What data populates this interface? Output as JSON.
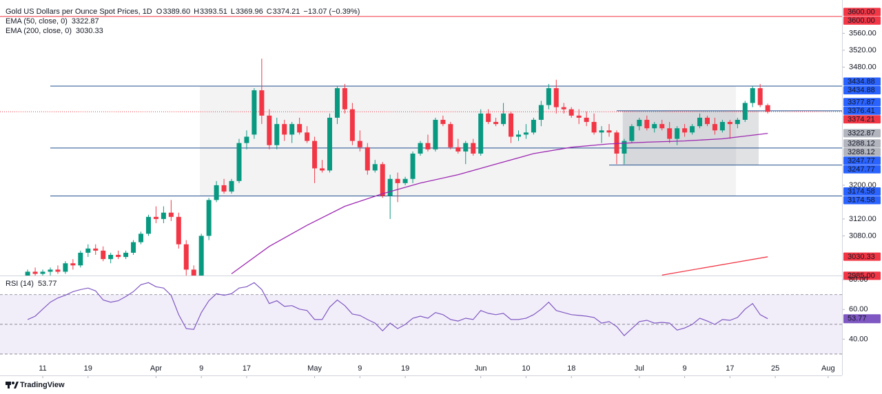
{
  "chart_data": [
    {
      "type": "candlestick",
      "title": "Gold US Dollars per Ounce Spot Prices, 1D",
      "ohlc_legend": [
        {
          "key": "O",
          "value": "3389.60"
        },
        {
          "key": "H",
          "value": "3393.51"
        },
        {
          "key": "L",
          "value": "3369.96"
        },
        {
          "key": "C",
          "value": "3374.21"
        }
      ],
      "change": "−13.07 (−0.39%)",
      "up_color": "#089981",
      "down_color": "#f23645",
      "x": [
        -2,
        -1,
        0,
        1,
        2,
        3,
        4,
        5,
        6,
        7,
        8,
        9,
        10,
        11,
        12,
        13,
        14,
        15,
        16,
        17,
        18,
        19,
        20,
        21,
        22,
        23,
        24,
        25,
        26,
        27,
        28,
        29,
        30,
        31,
        32,
        33,
        34,
        35,
        36,
        37,
        38,
        39,
        40,
        41,
        42,
        43,
        44,
        45,
        46,
        47,
        48,
        49,
        50,
        51,
        52,
        53,
        54,
        55,
        56,
        57,
        58,
        59,
        60,
        61,
        62,
        63,
        64,
        65,
        66,
        67,
        68,
        69,
        70,
        71,
        72,
        73,
        74,
        75,
        76,
        77,
        78,
        79,
        80,
        81,
        82,
        83,
        84,
        85,
        86,
        87,
        88,
        89,
        90,
        91,
        92,
        93,
        94,
        95,
        96
      ],
      "open": [
        2985,
        2995,
        2990,
        2995,
        3000,
        2995,
        3015,
        3010,
        3040,
        3050,
        3045,
        3025,
        3035,
        3030,
        3040,
        3065,
        3085,
        3125,
        3120,
        3135,
        3125,
        3060,
        3000,
        2975,
        3080,
        3165,
        3200,
        3185,
        3210,
        3300,
        3320,
        3425,
        3365,
        3295,
        3345,
        3320,
        3345,
        3325,
        3305,
        3240,
        3235,
        3360,
        3430,
        3380,
        3305,
        3290,
        3235,
        3250,
        3175,
        3215,
        3205,
        3215,
        3275,
        3300,
        3285,
        3355,
        3345,
        3290,
        3280,
        3300,
        3275,
        3370,
        3350,
        3345,
        3370,
        3315,
        3320,
        3325,
        3355,
        3390,
        3430,
        3385,
        3380,
        3365,
        3360,
        3350,
        3325,
        3330,
        3325,
        3275,
        3305,
        3340,
        3355,
        3335,
        3345,
        3335,
        3310,
        3335,
        3325,
        3340,
        3360,
        3345,
        3330,
        3350,
        3345,
        3355,
        3395,
        3430,
        3389.6
      ],
      "high": [
        3000,
        3005,
        3000,
        3005,
        3010,
        3020,
        3025,
        3045,
        3060,
        3060,
        3055,
        3040,
        3045,
        3045,
        3070,
        3090,
        3130,
        3150,
        3150,
        3165,
        3135,
        3070,
        3010,
        3085,
        3170,
        3210,
        3215,
        3215,
        3310,
        3330,
        3430,
        3500,
        3380,
        3360,
        3355,
        3350,
        3360,
        3340,
        3315,
        3260,
        3370,
        3435,
        3440,
        3395,
        3330,
        3300,
        3260,
        3255,
        3225,
        3230,
        3220,
        3280,
        3305,
        3320,
        3360,
        3365,
        3350,
        3310,
        3305,
        3310,
        3380,
        3380,
        3360,
        3395,
        3375,
        3330,
        3345,
        3360,
        3400,
        3440,
        3450,
        3395,
        3385,
        3380,
        3375,
        3370,
        3340,
        3345,
        3330,
        3310,
        3345,
        3360,
        3365,
        3350,
        3355,
        3350,
        3340,
        3345,
        3345,
        3370,
        3365,
        3360,
        3355,
        3355,
        3360,
        3400,
        3435,
        3440,
        3393.51
      ],
      "low": [
        2975,
        2985,
        2980,
        2985,
        2990,
        2990,
        3000,
        3005,
        3030,
        3035,
        3020,
        3015,
        3025,
        3025,
        3035,
        3060,
        3080,
        3110,
        3110,
        3115,
        3050,
        2985,
        2960,
        2960,
        3070,
        3160,
        3180,
        3180,
        3205,
        3285,
        3310,
        3345,
        3285,
        3285,
        3305,
        3300,
        3320,
        3300,
        3205,
        3230,
        3230,
        3345,
        3370,
        3295,
        3280,
        3225,
        3230,
        3170,
        3120,
        3160,
        3200,
        3205,
        3270,
        3280,
        3280,
        3340,
        3285,
        3275,
        3250,
        3270,
        3270,
        3345,
        3340,
        3340,
        3300,
        3305,
        3310,
        3320,
        3340,
        3380,
        3370,
        3370,
        3360,
        3345,
        3340,
        3320,
        3300,
        3315,
        3250,
        3250,
        3300,
        3330,
        3330,
        3325,
        3330,
        3300,
        3295,
        3315,
        3320,
        3335,
        3340,
        3320,
        3325,
        3310,
        3335,
        3350,
        3385,
        3385,
        3369.96
      ],
      "close": [
        2995,
        2990,
        2995,
        3000,
        2995,
        3015,
        3010,
        3040,
        3050,
        3045,
        3025,
        3035,
        3030,
        3040,
        3065,
        3085,
        3125,
        3120,
        3135,
        3125,
        3060,
        3000,
        2975,
        3080,
        3165,
        3200,
        3185,
        3210,
        3300,
        3315,
        3425,
        3365,
        3295,
        3345,
        3320,
        3345,
        3325,
        3305,
        3240,
        3235,
        3360,
        3430,
        3380,
        3305,
        3290,
        3235,
        3250,
        3175,
        3215,
        3205,
        3215,
        3275,
        3300,
        3285,
        3355,
        3345,
        3290,
        3280,
        3300,
        3275,
        3370,
        3350,
        3345,
        3370,
        3315,
        3320,
        3325,
        3355,
        3390,
        3430,
        3385,
        3380,
        3365,
        3360,
        3350,
        3325,
        3330,
        3325,
        3275,
        3305,
        3340,
        3355,
        3335,
        3345,
        3335,
        3310,
        3335,
        3325,
        3340,
        3360,
        3345,
        3330,
        3350,
        3345,
        3355,
        3395,
        3430,
        3390,
        3374.21
      ],
      "xlim": [
        -5.66,
        105.84
      ],
      "xticks": [
        {
          "value": 0,
          "label": "11"
        },
        {
          "value": 6,
          "label": "19"
        },
        {
          "value": 15,
          "label": "Apr"
        },
        {
          "value": 21,
          "label": "9"
        },
        {
          "value": 27,
          "label": "17"
        },
        {
          "value": 36,
          "label": "May"
        },
        {
          "value": 42,
          "label": "9"
        },
        {
          "value": 48,
          "label": "19"
        },
        {
          "value": 58,
          "label": "Jun"
        },
        {
          "value": 64,
          "label": "10"
        },
        {
          "value": 70,
          "label": "18"
        },
        {
          "value": 79,
          "label": "Jul"
        },
        {
          "value": 85,
          "label": "9"
        },
        {
          "value": 91,
          "label": "17"
        },
        {
          "value": 97,
          "label": "25"
        },
        {
          "value": 104,
          "label": "Aug"
        }
      ],
      "ylim": [
        2986,
        3639
      ],
      "yticks": [
        {
          "value": 3080,
          "label": "3080.00"
        },
        {
          "value": 3120,
          "label": "3120.00"
        },
        {
          "value": 3200,
          "label": "3200.00"
        },
        {
          "value": 3480,
          "label": "3480.00"
        },
        {
          "value": 3520,
          "label": "3520.00"
        },
        {
          "value": 3560,
          "label": "3560.00"
        }
      ],
      "series": [
        {
          "name": "EMA (50, close, 0)",
          "value_label": "3322.87",
          "color": "#9c27b0",
          "x": [
            25,
            30,
            35,
            40,
            45,
            50,
            55,
            60,
            65,
            70,
            75,
            80,
            85,
            90,
            96
          ],
          "values": [
            2990,
            3055,
            3105,
            3150,
            3180,
            3205,
            3225,
            3250,
            3275,
            3290,
            3298,
            3302,
            3305,
            3310,
            3322.87
          ]
        },
        {
          "name": "EMA (200, close, 0)",
          "value_label": "3030.33",
          "color": "#f23645",
          "x": [
            82,
            96
          ],
          "values": [
            2987,
            3030.33
          ]
        }
      ],
      "levels": [
        {
          "value": 3600,
          "color": "#f23645",
          "style": "solid"
        },
        {
          "value": 3434.88,
          "color": "#1e4d8c",
          "style": "solid",
          "from": 1
        },
        {
          "value": 3288.12,
          "color": "#1e4d8c",
          "style": "solid",
          "from": 1
        },
        {
          "value": 3174.58,
          "color": "#1e4d8c",
          "style": "solid",
          "from": 1
        },
        {
          "value": 3376.41,
          "color": "#1e4d8c",
          "style": "solid",
          "from": 76
        },
        {
          "value": 3247.77,
          "color": "#1e4d8c",
          "style": "solid",
          "from": 75
        },
        {
          "value": 3374.21,
          "color": "#f23645",
          "style": "dotted"
        }
      ],
      "zones": [
        {
          "x": [
            20.8,
            91.8
          ],
          "y": [
            3174.58,
            3434.88
          ],
          "color": "rgba(120,123,134,0.09)"
        },
        {
          "x": [
            76.8,
            94.8
          ],
          "y": [
            3247.77,
            3376.41
          ],
          "color": "rgba(120,123,134,0.22)"
        }
      ],
      "price_labels": [
        {
          "value": 3600,
          "label": "3600.00",
          "color": "#f23645"
        },
        {
          "value": 3600,
          "label": "3600.00",
          "color": "#f23645"
        },
        {
          "value": 3434.88,
          "label": "3434.88",
          "color": "#2962ff"
        },
        {
          "value": 3434.88,
          "label": "3434.88",
          "color": "#2962ff"
        },
        {
          "value": 3377.87,
          "label": "3377.87",
          "color": "#2962ff"
        },
        {
          "value": 3376.41,
          "label": "3376.41",
          "color": "#2962ff"
        },
        {
          "value": 3374.21,
          "label": "3374.21",
          "color": "#f23645"
        },
        {
          "value": 3322.87,
          "label": "3322.87",
          "color": "#b2b5be"
        },
        {
          "value": 3288.12,
          "label": "3288.12",
          "color": "#b2b5be"
        },
        {
          "value": 3288.12,
          "label": "3288.12",
          "color": "#b2b5be"
        },
        {
          "value": 3247.77,
          "label": "3247.77",
          "color": "#2962ff"
        },
        {
          "value": 3247.77,
          "label": "3247.77",
          "color": "#2962ff"
        },
        {
          "value": 3174.58,
          "label": "3174.58",
          "color": "#2962ff"
        },
        {
          "value": 3174.58,
          "label": "3174.58",
          "color": "#2962ff"
        },
        {
          "value": 3030.33,
          "label": "3030.33",
          "color": "#f23645"
        },
        {
          "value": 2985,
          "label": "2985.00",
          "color": "#f23645"
        }
      ]
    },
    {
      "type": "rsi",
      "title": "RSI (14)",
      "value_label": "53.77",
      "color": "#7e57c2",
      "x": [
        -2,
        -1,
        0,
        1,
        2,
        3,
        4,
        5,
        6,
        7,
        8,
        9,
        10,
        11,
        12,
        13,
        14,
        15,
        16,
        17,
        18,
        19,
        20,
        21,
        22,
        23,
        24,
        25,
        26,
        27,
        28,
        29,
        30,
        31,
        32,
        33,
        34,
        35,
        36,
        37,
        38,
        39,
        40,
        41,
        42,
        43,
        44,
        45,
        46,
        47,
        48,
        49,
        50,
        51,
        52,
        53,
        54,
        55,
        56,
        57,
        58,
        59,
        60,
        61,
        62,
        63,
        64,
        65,
        66,
        67,
        68,
        69,
        70,
        71,
        72,
        73,
        74,
        75,
        76,
        77,
        78,
        79,
        80,
        81,
        82,
        83,
        84,
        85,
        86,
        87,
        88,
        89,
        90,
        91,
        92,
        93,
        94,
        95,
        96
      ],
      "values": [
        53.2,
        55.5,
        60.2,
        64.9,
        67.8,
        69.6,
        72,
        73.4,
        74.4,
        72.5,
        66.4,
        64.9,
        65.9,
        68.7,
        72,
        76.7,
        78.1,
        75.3,
        74.4,
        69.6,
        56.5,
        47.1,
        46.6,
        57.9,
        65.9,
        70.6,
        69.6,
        70.6,
        74.4,
        75.3,
        78.1,
        73.4,
        64,
        65.9,
        62.1,
        62.6,
        60.2,
        59.3,
        53.2,
        53.2,
        61.6,
        66.4,
        62.6,
        56.9,
        56,
        53.2,
        50.8,
        45.6,
        50.8,
        47.1,
        49.9,
        54.1,
        55.5,
        54.1,
        57.9,
        56.5,
        53.2,
        52.2,
        54.1,
        53.2,
        59.3,
        57.4,
        56.5,
        57.4,
        53.2,
        53.2,
        54.1,
        56.5,
        60.2,
        64.9,
        59.3,
        57.9,
        56.5,
        56,
        55.5,
        54.6,
        50.8,
        51.8,
        48.5,
        42.4,
        47.1,
        51.8,
        52.7,
        50.8,
        51.3,
        50.8,
        46.1,
        47.5,
        49.9,
        54.1,
        52.2,
        49.9,
        53.2,
        52.7,
        54.6,
        60.2,
        64,
        56.5,
        53.77
      ],
      "ylim": [
        17.9,
        82.4
      ],
      "yticks": [
        {
          "value": 40,
          "label": "40.00"
        },
        {
          "value": 60,
          "label": "60.00"
        },
        {
          "value": 80,
          "label": "80.00"
        }
      ],
      "band": [
        30,
        70
      ],
      "midline": 50,
      "band_color": "rgba(126,87,194,0.1)"
    }
  ],
  "footer": {
    "brand": "TradingView"
  }
}
